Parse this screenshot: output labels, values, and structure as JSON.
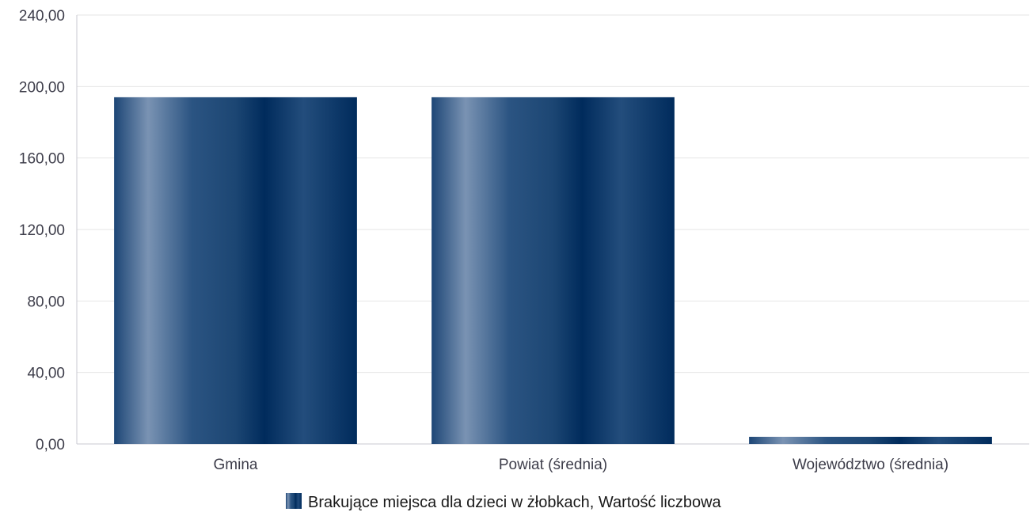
{
  "chart_data": {
    "type": "bar",
    "categories": [
      "Gmina",
      "Powiat (średnia)",
      "Województwo (średnia)"
    ],
    "series": [
      {
        "name": "Brakujące miejsca dla dzieci w żłobkach, Wartość liczbowa",
        "values": [
          194.0,
          194.0,
          4.0
        ]
      }
    ],
    "y_ticks": [
      "0,00",
      "40,00",
      "80,00",
      "120,00",
      "160,00",
      "200,00",
      "240,00"
    ],
    "ylim": [
      0,
      240
    ],
    "grid": true,
    "legend_position": "bottom-center",
    "title": "",
    "xlabel": "",
    "ylabel": ""
  },
  "colors": {
    "bar_dark": "#002b5c",
    "bar_light": "#7a93b3",
    "bar_mid": "#1f4a7a",
    "grid": "#e6e6e6",
    "axis": "#c8c8d0"
  }
}
